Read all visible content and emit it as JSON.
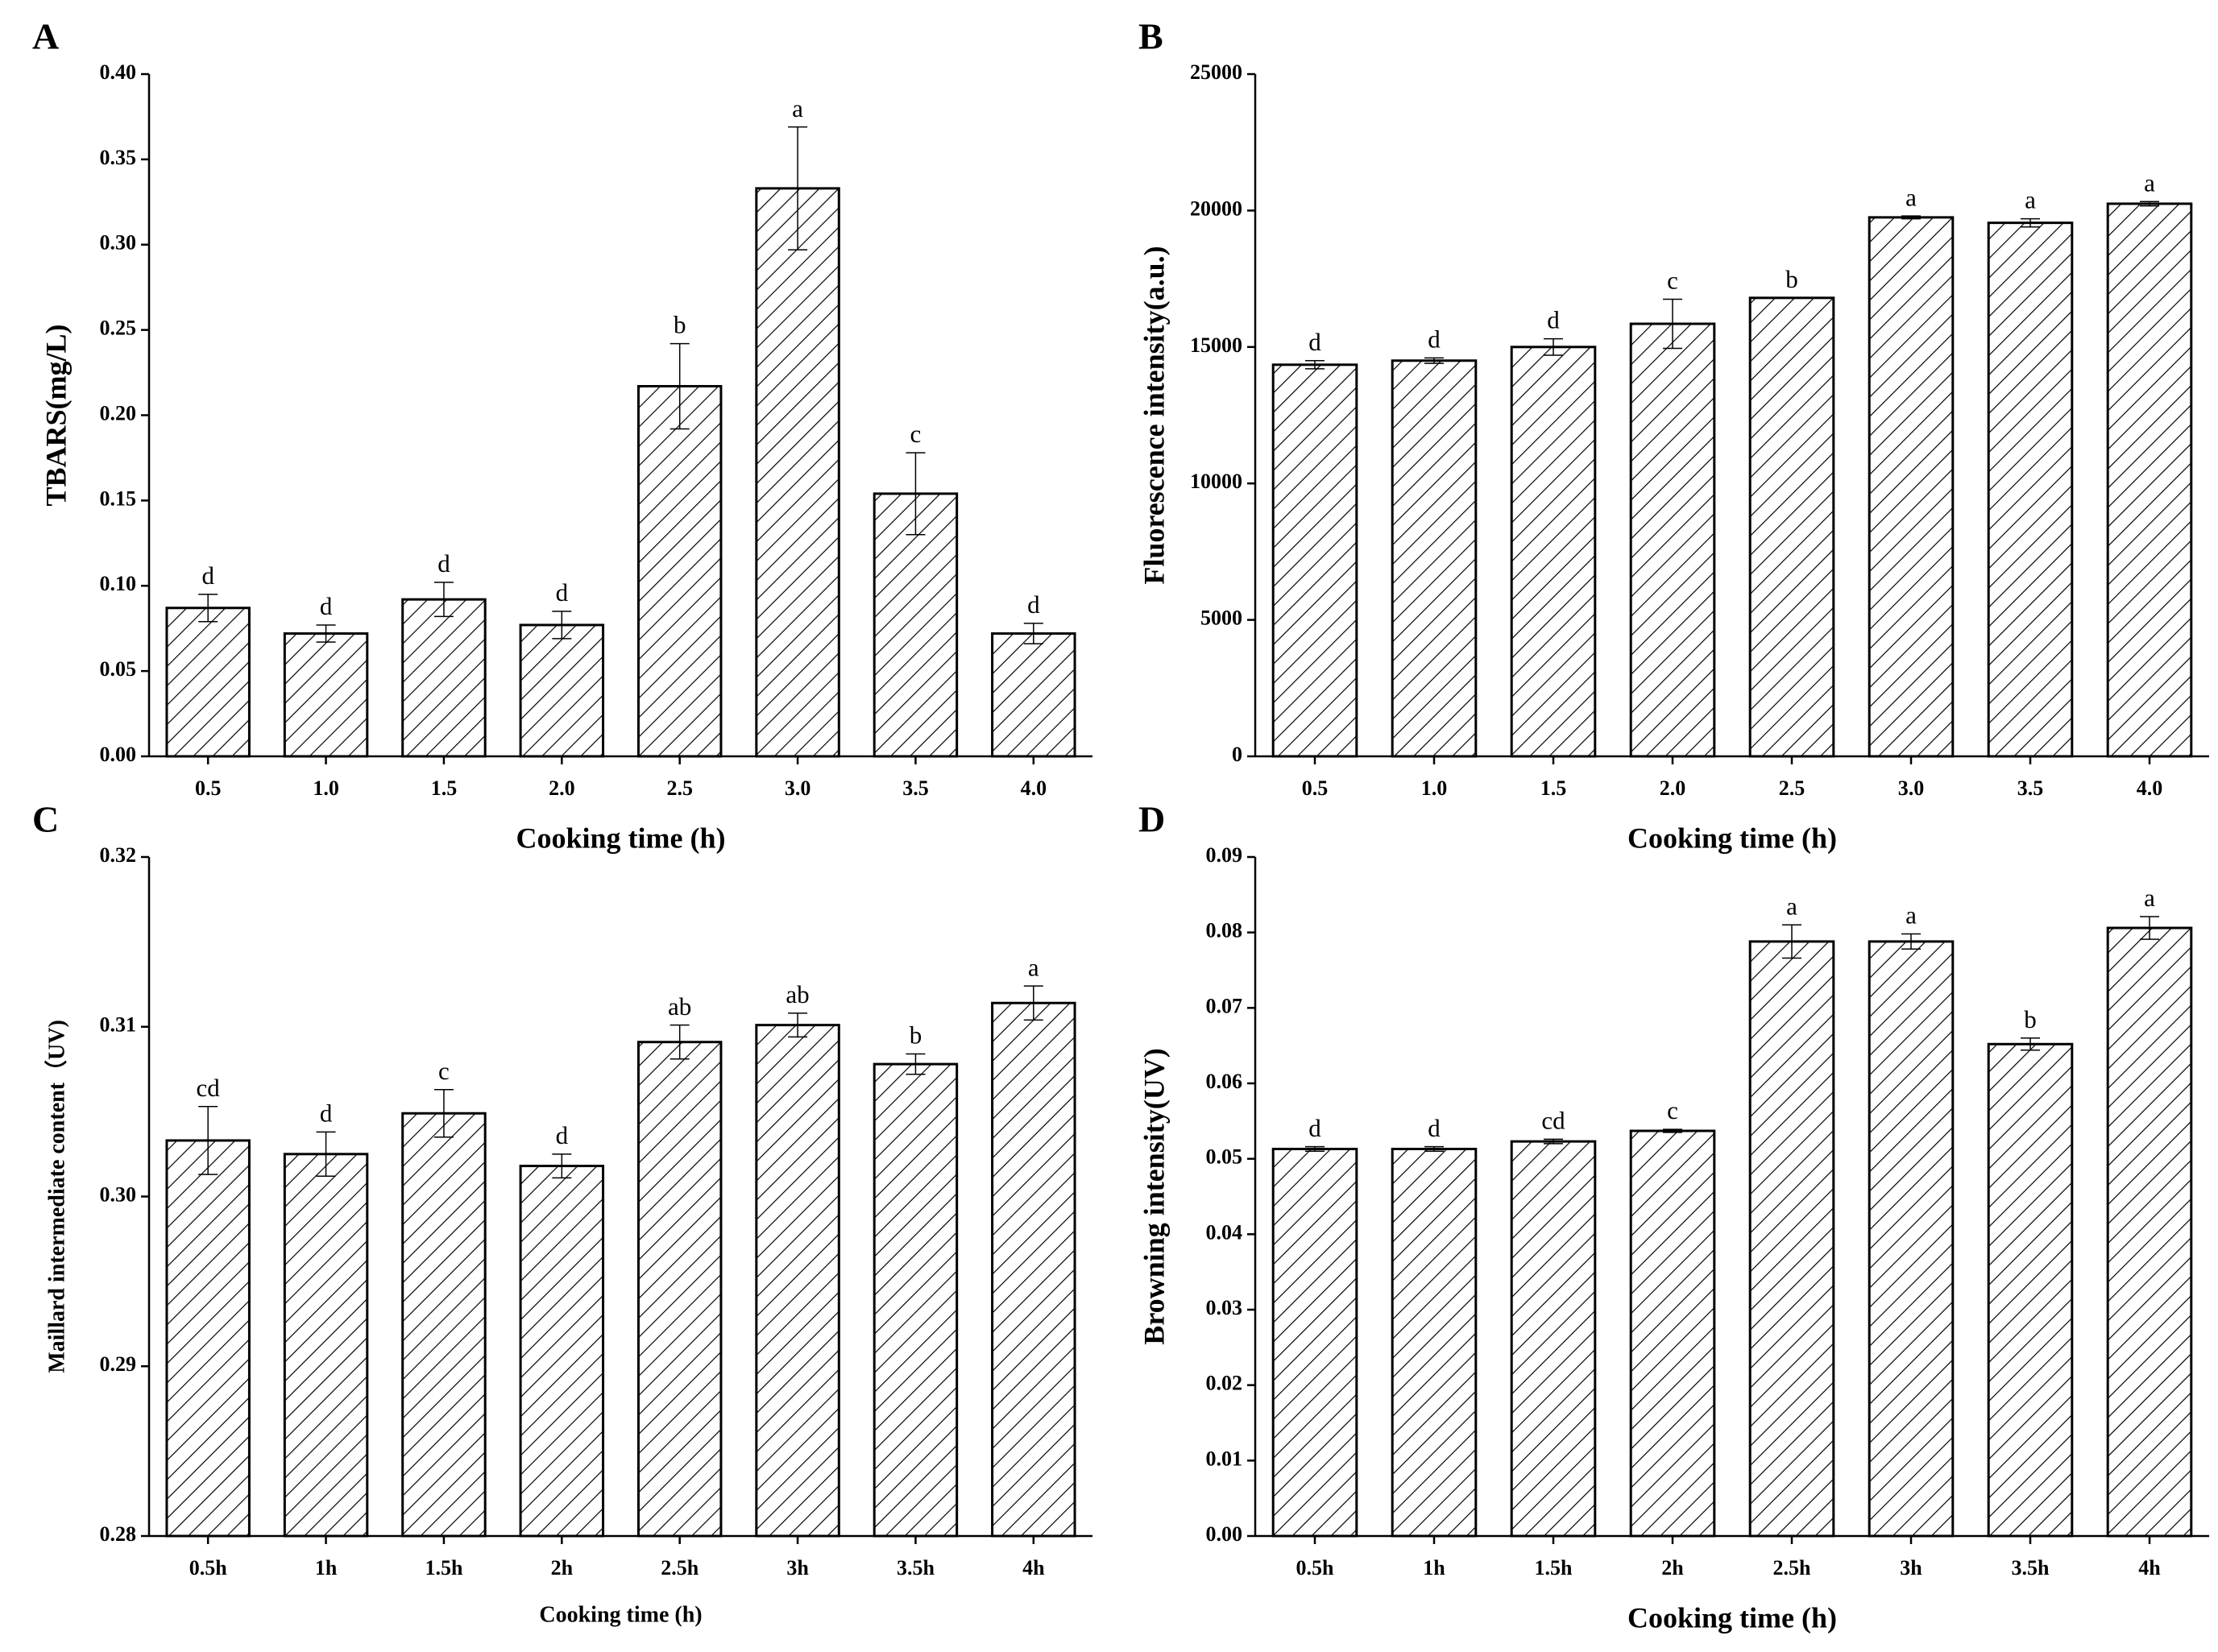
{
  "chart_data": [
    {
      "type": "bar",
      "label": "A",
      "ylabel": "TBARS(mg/L)",
      "xlabel": "Cooking time (h)",
      "categories": [
        "0.5",
        "1.0",
        "1.5",
        "2.0",
        "2.5",
        "3.0",
        "3.5",
        "4.0"
      ],
      "values": [
        0.087,
        0.072,
        0.092,
        0.077,
        0.217,
        0.333,
        0.154,
        0.072
      ],
      "errors": [
        0.008,
        0.005,
        0.01,
        0.008,
        0.025,
        0.036,
        0.024,
        0.006
      ],
      "annotations": [
        "d",
        "d",
        "d",
        "d",
        "b",
        "a",
        "c",
        "d"
      ],
      "ylim": [
        0,
        0.4
      ],
      "yticks": [
        {
          "value": 0,
          "label": "0.00"
        },
        0.05,
        {
          "value": 0.1,
          "label": "0.10"
        },
        0.15,
        {
          "value": 0.2,
          "label": "0.20"
        },
        0.25,
        {
          "value": 0.3,
          "label": "0.30"
        },
        0.35,
        {
          "value": 0.4,
          "label": "0.40"
        }
      ],
      "color": "#000000",
      "pattern": "hatch"
    },
    {
      "type": "bar",
      "label": "B",
      "ylabel": "Fluorescence intensity(a.u.)",
      "xlabel": "Cooking time (h)",
      "categories": [
        "0.5",
        "1.0",
        "1.5",
        "2.0",
        "2.5",
        "3.0",
        "3.5",
        "4.0"
      ],
      "values": [
        14350,
        14500,
        15000,
        15850,
        16800,
        19750,
        19550,
        20250
      ],
      "errors": [
        150,
        100,
        300,
        900,
        0,
        50,
        150,
        80
      ],
      "annotations": [
        "d",
        "d",
        "d",
        "c",
        "b",
        "a",
        "a",
        "a"
      ],
      "ylim": [
        0,
        25000
      ],
      "yticks": [
        0,
        5000,
        10000,
        15000,
        20000,
        25000
      ],
      "color": "#000000",
      "pattern": "hatch"
    },
    {
      "type": "bar",
      "label": "C",
      "ylabel": "Maillard intermediate content（UV)",
      "xlabel": "Cooking time (h)",
      "categories": [
        "0.5h",
        "1h",
        "1.5h",
        "2h",
        "2.5h",
        "3h",
        "3.5h",
        "4h"
      ],
      "values": [
        0.3033,
        0.3025,
        0.3049,
        0.3018,
        0.3091,
        0.3101,
        0.3078,
        0.3114
      ],
      "errors": [
        0.002,
        0.0013,
        0.0014,
        0.0007,
        0.001,
        0.0007,
        0.0006,
        0.001
      ],
      "annotations": [
        "cd",
        "d",
        "c",
        "d",
        "ab",
        "ab",
        "b",
        "a"
      ],
      "ylim": [
        0.28,
        0.32
      ],
      "yticks": [
        0.28,
        0.29,
        {
          "value": 0.3,
          "label": "0.30"
        },
        0.31,
        0.32
      ],
      "color": "#000000",
      "pattern": "hatch"
    },
    {
      "type": "bar",
      "label": "D",
      "ylabel": "Browning intensity(UV)",
      "xlabel": "Cooking time (h)",
      "categories": [
        "0.5h",
        "1h",
        "1.5h",
        "2h",
        "2.5h",
        "3h",
        "3.5h",
        "4h"
      ],
      "values": [
        0.0513,
        0.0513,
        0.0523,
        0.0537,
        0.0788,
        0.0788,
        0.0652,
        0.0806
      ],
      "errors": [
        0.0003,
        0.0003,
        0.0003,
        0.0002,
        0.0022,
        0.001,
        0.0008,
        0.0015
      ],
      "annotations": [
        "d",
        "d",
        "cd",
        "c",
        "a",
        "a",
        "b",
        "a"
      ],
      "ylim": [
        0,
        0.09
      ],
      "yticks": [
        {
          "value": 0,
          "label": "0.00"
        },
        0.01,
        0.02,
        0.03,
        0.04,
        0.05,
        0.06,
        0.07,
        0.08,
        0.09
      ],
      "color": "#000000",
      "pattern": "hatch"
    }
  ]
}
